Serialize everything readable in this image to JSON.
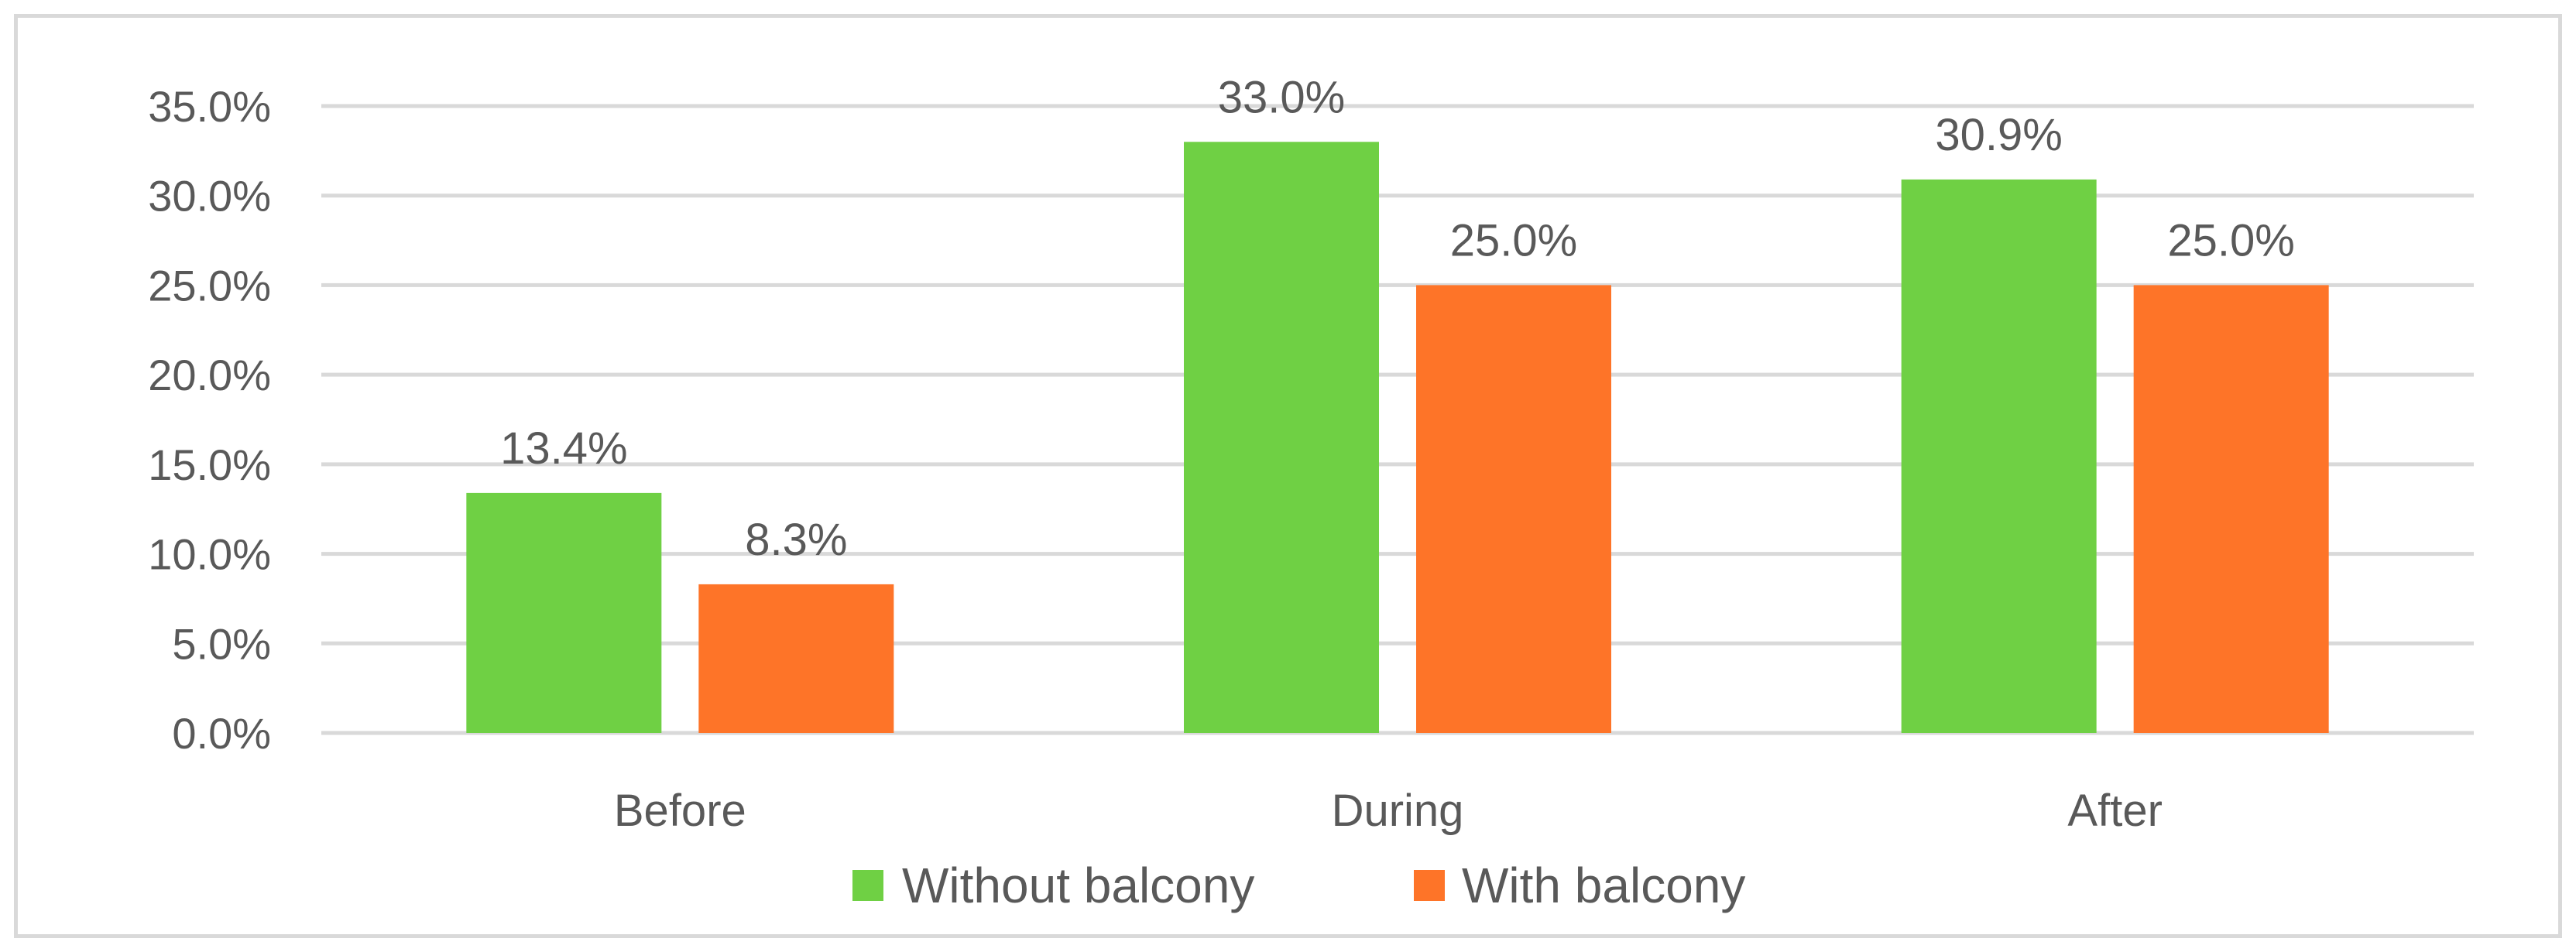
{
  "chart_data": {
    "type": "bar",
    "title": "",
    "xlabel": "",
    "ylabel": "",
    "categories": [
      "Before",
      "During",
      "After"
    ],
    "series": [
      {
        "name": "Without balcony",
        "values": [
          13.4,
          33.0,
          30.9
        ],
        "color": "#6fd044"
      },
      {
        "name": "With balcony",
        "values": [
          8.3,
          25.0,
          25.0
        ],
        "color": "#fe7428"
      }
    ],
    "data_labels": [
      [
        "13.4%",
        "33.0%",
        "30.9%"
      ],
      [
        "8.3%",
        "25.0%",
        "25.0%"
      ]
    ],
    "ylim": [
      0,
      35
    ],
    "yticks": [
      0,
      5,
      10,
      15,
      20,
      25,
      30,
      35
    ],
    "ytick_labels": [
      "0.0%",
      "5.0%",
      "10.0%",
      "15.0%",
      "20.0%",
      "25.0%",
      "30.0%",
      "35.0%"
    ],
    "grid": true,
    "legend_position": "bottom",
    "colors": {
      "grid": "#d9d9d9",
      "text": "#595959",
      "border": "#d9d9d9"
    }
  }
}
